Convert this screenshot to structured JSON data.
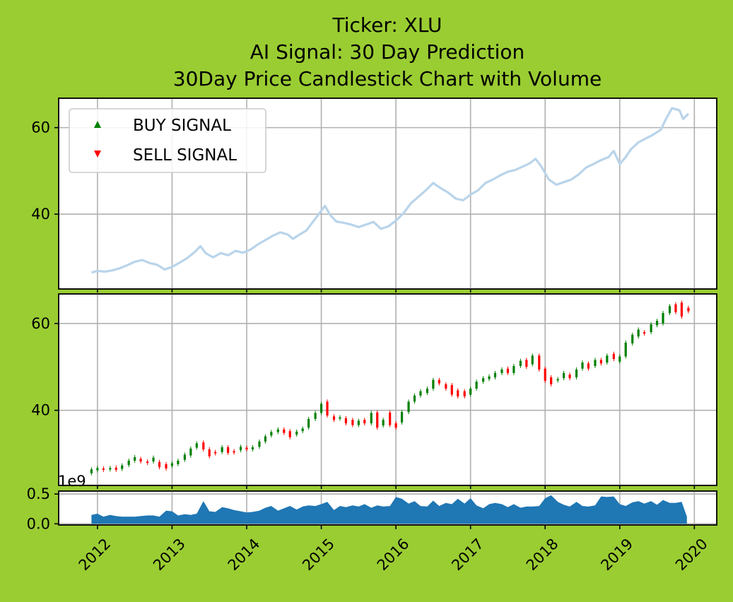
{
  "title_lines": [
    "Ticker: XLU",
    "AI Signal: 30 Day Prediction",
    "30Day Price Candlestick Chart with Volume"
  ],
  "legend": [
    {
      "label": "BUY SIGNAL",
      "marker": "triangle-up",
      "color": "#008000"
    },
    {
      "label": "SELL SIGNAL",
      "marker": "triangle-down",
      "color": "#ff0000"
    }
  ],
  "colors": {
    "background": "#9acd32",
    "price_line": "#b9d4ea",
    "up_candle": "#008000",
    "down_candle": "#ff0000",
    "volume_fill": "#1f77b4"
  },
  "chart_data": [
    {
      "type": "line",
      "name": "price",
      "grid": true,
      "legend_position": "upper-left",
      "xlim": [
        2011.48,
        2020.3
      ],
      "ylim": [
        22.7,
        66.8
      ],
      "yticks": [
        40,
        60
      ],
      "points": [
        [
          2011.92,
          26.5
        ],
        [
          2012.0,
          26.9
        ],
        [
          2012.1,
          26.7
        ],
        [
          2012.2,
          27.0
        ],
        [
          2012.3,
          27.5
        ],
        [
          2012.4,
          28.2
        ],
        [
          2012.5,
          29.0
        ],
        [
          2012.6,
          29.4
        ],
        [
          2012.7,
          28.7
        ],
        [
          2012.8,
          28.3
        ],
        [
          2012.9,
          27.2
        ],
        [
          2013.0,
          27.8
        ],
        [
          2013.1,
          28.8
        ],
        [
          2013.2,
          29.8
        ],
        [
          2013.3,
          31.2
        ],
        [
          2013.38,
          32.6
        ],
        [
          2013.45,
          31.0
        ],
        [
          2013.55,
          30.0
        ],
        [
          2013.65,
          31.0
        ],
        [
          2013.75,
          30.5
        ],
        [
          2013.85,
          31.5
        ],
        [
          2013.95,
          31.1
        ],
        [
          2014.05,
          31.8
        ],
        [
          2014.15,
          33.0
        ],
        [
          2014.25,
          34.0
        ],
        [
          2014.35,
          35.0
        ],
        [
          2014.45,
          35.8
        ],
        [
          2014.55,
          35.3
        ],
        [
          2014.62,
          34.3
        ],
        [
          2014.7,
          35.2
        ],
        [
          2014.8,
          36.2
        ],
        [
          2014.9,
          38.5
        ],
        [
          2015.0,
          40.8
        ],
        [
          2015.05,
          41.9
        ],
        [
          2015.12,
          39.8
        ],
        [
          2015.2,
          38.3
        ],
        [
          2015.3,
          38.0
        ],
        [
          2015.4,
          37.6
        ],
        [
          2015.5,
          37.0
        ],
        [
          2015.6,
          37.6
        ],
        [
          2015.7,
          38.2
        ],
        [
          2015.8,
          36.6
        ],
        [
          2015.9,
          37.2
        ],
        [
          2016.0,
          38.5
        ],
        [
          2016.1,
          40.2
        ],
        [
          2016.2,
          42.5
        ],
        [
          2016.3,
          44.0
        ],
        [
          2016.4,
          45.5
        ],
        [
          2016.5,
          47.2
        ],
        [
          2016.6,
          46.0
        ],
        [
          2016.7,
          45.0
        ],
        [
          2016.8,
          43.6
        ],
        [
          2016.9,
          43.2
        ],
        [
          2017.0,
          44.5
        ],
        [
          2017.1,
          45.5
        ],
        [
          2017.2,
          47.2
        ],
        [
          2017.3,
          48.0
        ],
        [
          2017.4,
          49.0
        ],
        [
          2017.5,
          49.8
        ],
        [
          2017.6,
          50.2
        ],
        [
          2017.7,
          51.0
        ],
        [
          2017.8,
          51.8
        ],
        [
          2017.87,
          52.8
        ],
        [
          2017.95,
          51.0
        ],
        [
          2018.05,
          48.0
        ],
        [
          2018.15,
          46.8
        ],
        [
          2018.25,
          47.4
        ],
        [
          2018.35,
          48.0
        ],
        [
          2018.45,
          49.2
        ],
        [
          2018.55,
          50.8
        ],
        [
          2018.65,
          51.6
        ],
        [
          2018.75,
          52.5
        ],
        [
          2018.85,
          53.2
        ],
        [
          2018.92,
          54.6
        ],
        [
          2019.0,
          51.6
        ],
        [
          2019.08,
          53.2
        ],
        [
          2019.15,
          55.0
        ],
        [
          2019.25,
          56.6
        ],
        [
          2019.35,
          57.5
        ],
        [
          2019.45,
          58.4
        ],
        [
          2019.55,
          59.5
        ],
        [
          2019.62,
          62.0
        ],
        [
          2019.7,
          64.5
        ],
        [
          2019.8,
          64.0
        ],
        [
          2019.85,
          62.0
        ],
        [
          2019.92,
          63.2
        ]
      ]
    },
    {
      "type": "candlestick",
      "name": "candles",
      "grid": true,
      "xlim": [
        2011.48,
        2020.3
      ],
      "ylim": [
        22.7,
        66.8
      ],
      "yticks": [
        40,
        60
      ],
      "candles": [
        [
          2011.92,
          25.5,
          26.4
        ],
        [
          2012.0,
          26.2,
          26.7
        ],
        [
          2012.08,
          26.6,
          26.4
        ],
        [
          2012.17,
          26.4,
          26.7
        ],
        [
          2012.25,
          26.8,
          26.3
        ],
        [
          2012.33,
          26.5,
          27.3
        ],
        [
          2012.42,
          27.4,
          28.4
        ],
        [
          2012.5,
          28.4,
          29.2
        ],
        [
          2012.58,
          28.8,
          28.2
        ],
        [
          2012.67,
          28.2,
          28.0
        ],
        [
          2012.75,
          28.2,
          29.1
        ],
        [
          2012.83,
          28.1,
          26.9
        ],
        [
          2012.92,
          27.6,
          26.6
        ],
        [
          2013.0,
          27.2,
          27.8
        ],
        [
          2013.08,
          27.6,
          28.4
        ],
        [
          2013.17,
          28.6,
          29.8
        ],
        [
          2013.25,
          29.6,
          31.2
        ],
        [
          2013.33,
          31.4,
          32.4
        ],
        [
          2013.42,
          32.6,
          31.0
        ],
        [
          2013.5,
          31.0,
          29.4
        ],
        [
          2013.58,
          30.4,
          30.1
        ],
        [
          2013.67,
          30.4,
          31.5
        ],
        [
          2013.75,
          31.5,
          30.2
        ],
        [
          2013.83,
          30.6,
          30.4
        ],
        [
          2013.92,
          30.8,
          31.6
        ],
        [
          2014.0,
          31.4,
          31.0
        ],
        [
          2014.08,
          31.0,
          31.5
        ],
        [
          2014.17,
          31.6,
          32.8
        ],
        [
          2014.25,
          32.8,
          34.0
        ],
        [
          2014.33,
          34.2,
          35.0
        ],
        [
          2014.42,
          35.0,
          35.6
        ],
        [
          2014.5,
          35.6,
          34.8
        ],
        [
          2014.58,
          35.2,
          33.8
        ],
        [
          2014.67,
          34.4,
          35.1
        ],
        [
          2014.75,
          35.2,
          35.8
        ],
        [
          2014.83,
          36.0,
          38.0
        ],
        [
          2014.92,
          38.0,
          39.4
        ],
        [
          2015.0,
          39.4,
          41.5
        ],
        [
          2015.08,
          42.0,
          38.8
        ],
        [
          2015.17,
          38.6,
          37.8
        ],
        [
          2015.25,
          38.2,
          38.4
        ],
        [
          2015.33,
          38.2,
          37.0
        ],
        [
          2015.42,
          37.8,
          36.6
        ],
        [
          2015.5,
          36.6,
          37.6
        ],
        [
          2015.58,
          37.8,
          37.0
        ],
        [
          2015.67,
          37.0,
          39.4
        ],
        [
          2015.75,
          39.5,
          36.0
        ],
        [
          2015.83,
          36.5,
          37.8
        ],
        [
          2015.92,
          39.5,
          36.6
        ],
        [
          2016.0,
          37.0,
          36.0
        ],
        [
          2016.08,
          37.2,
          39.6
        ],
        [
          2016.17,
          39.6,
          42.0
        ],
        [
          2016.25,
          42.0,
          43.4
        ],
        [
          2016.33,
          43.4,
          44.4
        ],
        [
          2016.42,
          44.0,
          45.0
        ],
        [
          2016.5,
          45.0,
          47.0
        ],
        [
          2016.58,
          47.0,
          46.2
        ],
        [
          2016.67,
          46.0,
          45.0
        ],
        [
          2016.75,
          45.8,
          43.6
        ],
        [
          2016.83,
          44.6,
          43.2
        ],
        [
          2016.92,
          44.4,
          43.2
        ],
        [
          2017.0,
          43.6,
          45.0
        ],
        [
          2017.08,
          45.0,
          46.6
        ],
        [
          2017.17,
          46.6,
          47.4
        ],
        [
          2017.25,
          47.2,
          47.8
        ],
        [
          2017.33,
          47.6,
          48.6
        ],
        [
          2017.42,
          48.6,
          49.4
        ],
        [
          2017.5,
          49.6,
          48.6
        ],
        [
          2017.58,
          48.6,
          50.2
        ],
        [
          2017.67,
          50.2,
          51.4
        ],
        [
          2017.75,
          51.6,
          50.0
        ],
        [
          2017.83,
          50.6,
          52.6
        ],
        [
          2017.92,
          52.6,
          49.4
        ],
        [
          2018.0,
          49.6,
          46.8
        ],
        [
          2018.08,
          47.6,
          46.0
        ],
        [
          2018.17,
          47.0,
          47.2
        ],
        [
          2018.25,
          47.4,
          48.6
        ],
        [
          2018.33,
          48.2,
          47.4
        ],
        [
          2018.42,
          47.6,
          49.4
        ],
        [
          2018.5,
          49.6,
          51.0
        ],
        [
          2018.58,
          50.8,
          49.6
        ],
        [
          2018.67,
          50.2,
          51.6
        ],
        [
          2018.75,
          51.6,
          50.8
        ],
        [
          2018.83,
          51.0,
          52.6
        ],
        [
          2018.92,
          53.0,
          51.8
        ],
        [
          2019.0,
          51.2,
          52.4
        ],
        [
          2019.08,
          52.4,
          55.6
        ],
        [
          2019.17,
          55.4,
          57.4
        ],
        [
          2019.25,
          57.0,
          58.6
        ],
        [
          2019.33,
          58.0,
          57.8
        ],
        [
          2019.42,
          58.0,
          59.8
        ],
        [
          2019.5,
          59.6,
          60.6
        ],
        [
          2019.58,
          60.0,
          62.4
        ],
        [
          2019.67,
          62.4,
          64.0
        ],
        [
          2019.75,
          64.4,
          62.6
        ],
        [
          2019.83,
          64.8,
          61.6
        ],
        [
          2019.92,
          63.6,
          62.8
        ]
      ]
    },
    {
      "type": "area",
      "name": "volume",
      "grid": true,
      "offset_label": "1e9",
      "ylim": [
        -0.02,
        0.55
      ],
      "yticks": [
        0.0,
        0.5
      ],
      "yticklabels": [
        "0.0",
        "0.5"
      ],
      "xticks": [
        2012,
        2013,
        2014,
        2015,
        2016,
        2017,
        2018,
        2019,
        2020
      ],
      "xticklabels": [
        "2012",
        "2013",
        "2014",
        "2015",
        "2016",
        "2017",
        "2018",
        "2019",
        "2020"
      ],
      "points": [
        [
          2011.92,
          0.15
        ],
        [
          2012.0,
          0.17
        ],
        [
          2012.08,
          0.12
        ],
        [
          2012.17,
          0.15
        ],
        [
          2012.25,
          0.13
        ],
        [
          2012.33,
          0.12
        ],
        [
          2012.42,
          0.12
        ],
        [
          2012.5,
          0.12
        ],
        [
          2012.58,
          0.13
        ],
        [
          2012.67,
          0.14
        ],
        [
          2012.75,
          0.14
        ],
        [
          2012.83,
          0.12
        ],
        [
          2012.92,
          0.22
        ],
        [
          2013.0,
          0.21
        ],
        [
          2013.08,
          0.14
        ],
        [
          2013.17,
          0.16
        ],
        [
          2013.25,
          0.15
        ],
        [
          2013.33,
          0.17
        ],
        [
          2013.42,
          0.38
        ],
        [
          2013.5,
          0.21
        ],
        [
          2013.58,
          0.2
        ],
        [
          2013.67,
          0.28
        ],
        [
          2013.75,
          0.26
        ],
        [
          2013.83,
          0.23
        ],
        [
          2013.92,
          0.21
        ],
        [
          2014.0,
          0.19
        ],
        [
          2014.08,
          0.2
        ],
        [
          2014.17,
          0.22
        ],
        [
          2014.25,
          0.27
        ],
        [
          2014.33,
          0.3
        ],
        [
          2014.42,
          0.22
        ],
        [
          2014.5,
          0.26
        ],
        [
          2014.58,
          0.3
        ],
        [
          2014.67,
          0.24
        ],
        [
          2014.75,
          0.29
        ],
        [
          2014.83,
          0.31
        ],
        [
          2014.92,
          0.3
        ],
        [
          2015.0,
          0.33
        ],
        [
          2015.08,
          0.37
        ],
        [
          2015.17,
          0.23
        ],
        [
          2015.25,
          0.3
        ],
        [
          2015.33,
          0.28
        ],
        [
          2015.42,
          0.31
        ],
        [
          2015.5,
          0.29
        ],
        [
          2015.58,
          0.33
        ],
        [
          2015.67,
          0.27
        ],
        [
          2015.75,
          0.31
        ],
        [
          2015.83,
          0.29
        ],
        [
          2015.92,
          0.3
        ],
        [
          2016.0,
          0.45
        ],
        [
          2016.08,
          0.42
        ],
        [
          2016.17,
          0.34
        ],
        [
          2016.25,
          0.38
        ],
        [
          2016.33,
          0.3
        ],
        [
          2016.42,
          0.29
        ],
        [
          2016.5,
          0.39
        ],
        [
          2016.58,
          0.3
        ],
        [
          2016.67,
          0.35
        ],
        [
          2016.75,
          0.33
        ],
        [
          2016.83,
          0.42
        ],
        [
          2016.92,
          0.34
        ],
        [
          2017.0,
          0.43
        ],
        [
          2017.08,
          0.31
        ],
        [
          2017.17,
          0.26
        ],
        [
          2017.25,
          0.33
        ],
        [
          2017.33,
          0.35
        ],
        [
          2017.42,
          0.33
        ],
        [
          2017.5,
          0.28
        ],
        [
          2017.58,
          0.33
        ],
        [
          2017.67,
          0.27
        ],
        [
          2017.75,
          0.29
        ],
        [
          2017.83,
          0.29
        ],
        [
          2017.92,
          0.3
        ],
        [
          2018.0,
          0.43
        ],
        [
          2018.08,
          0.48
        ],
        [
          2018.17,
          0.37
        ],
        [
          2018.25,
          0.32
        ],
        [
          2018.33,
          0.29
        ],
        [
          2018.42,
          0.37
        ],
        [
          2018.5,
          0.3
        ],
        [
          2018.58,
          0.29
        ],
        [
          2018.67,
          0.31
        ],
        [
          2018.75,
          0.46
        ],
        [
          2018.83,
          0.45
        ],
        [
          2018.92,
          0.46
        ],
        [
          2019.0,
          0.33
        ],
        [
          2019.08,
          0.3
        ],
        [
          2019.17,
          0.36
        ],
        [
          2019.25,
          0.38
        ],
        [
          2019.33,
          0.34
        ],
        [
          2019.42,
          0.38
        ],
        [
          2019.5,
          0.32
        ],
        [
          2019.58,
          0.4
        ],
        [
          2019.67,
          0.35
        ],
        [
          2019.75,
          0.35
        ],
        [
          2019.83,
          0.37
        ],
        [
          2019.9,
          0.12
        ]
      ]
    }
  ]
}
